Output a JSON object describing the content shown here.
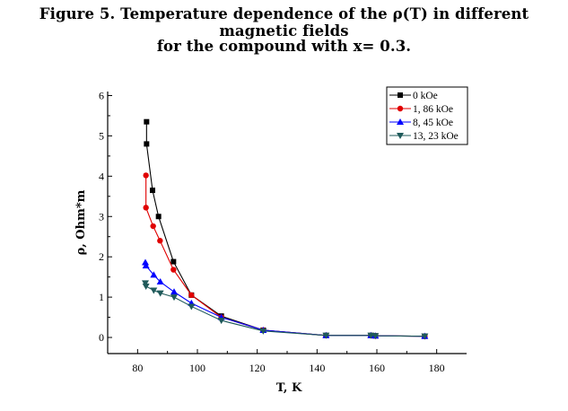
{
  "chart_data": {
    "type": "line",
    "title_line1": "Figure 5. Temperature dependence of  the ρ(T) in different magnetic fields",
    "title_line2": "for the compound with x= 0.3.",
    "xlabel": "T, K",
    "ylabel": "ρ, Ohm*m",
    "xlim": [
      70,
      190
    ],
    "ylim": [
      -0.4,
      6.1
    ],
    "x_ticks": [
      80,
      100,
      120,
      140,
      160,
      180
    ],
    "y_ticks": [
      0,
      1,
      2,
      3,
      4,
      5,
      6
    ],
    "legend_position": "top-right",
    "grid": false,
    "series": [
      {
        "name": "0 kOe",
        "color": "#000000",
        "marker": "square",
        "x": [
          83,
          83,
          85,
          87,
          92,
          98,
          108,
          122,
          143,
          158,
          159.5,
          176
        ],
        "y": [
          5.35,
          4.8,
          3.65,
          3.0,
          1.88,
          1.05,
          0.53,
          0.18,
          0.05,
          0.05,
          0.04,
          0.03
        ]
      },
      {
        "name": "1, 86 kOe",
        "color": "#e00000",
        "marker": "circle",
        "x": [
          82.8,
          82.8,
          85.2,
          87.5,
          92,
          98,
          108,
          122,
          143,
          158,
          159.5,
          176
        ],
        "y": [
          4.02,
          3.22,
          2.76,
          2.4,
          1.68,
          1.05,
          0.5,
          0.18,
          0.05,
          0.05,
          0.04,
          0.03
        ]
      },
      {
        "name": "8, 45 kOe",
        "color": "#0000ff",
        "marker": "triangle-up",
        "x": [
          82.6,
          82.8,
          85.4,
          87.6,
          92.2,
          98,
          108,
          122,
          143,
          158,
          159.5,
          176
        ],
        "y": [
          1.86,
          1.78,
          1.55,
          1.38,
          1.13,
          0.85,
          0.5,
          0.18,
          0.05,
          0.05,
          0.04,
          0.03
        ]
      },
      {
        "name": "13, 23 kOe",
        "color": "#1f5a5a",
        "marker": "triangle-down",
        "x": [
          82.6,
          82.8,
          85.4,
          87.6,
          92.2,
          98,
          108,
          122,
          143,
          158,
          159.5,
          176
        ],
        "y": [
          1.35,
          1.27,
          1.17,
          1.1,
          1.0,
          0.77,
          0.42,
          0.16,
          0.05,
          0.05,
          0.04,
          0.03
        ]
      }
    ]
  }
}
